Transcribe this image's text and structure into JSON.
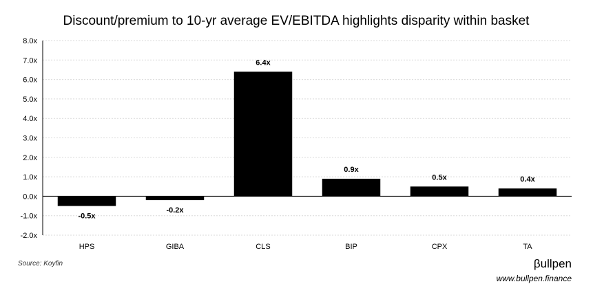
{
  "chart_data": {
    "type": "bar",
    "title": "Discount/premium to 10-yr average EV/EBITDA highlights disparity within basket",
    "xlabel": "",
    "ylabel": "",
    "categories": [
      "HPS",
      "GIBA",
      "CLS",
      "BIP",
      "CPX",
      "TA"
    ],
    "values": [
      -0.5,
      -0.2,
      6.4,
      0.9,
      0.5,
      0.4
    ],
    "data_labels": [
      "-0.5x",
      "-0.2x",
      "6.4x",
      "0.9x",
      "0.5x",
      "0.4x"
    ],
    "ylim": [
      -2.0,
      8.0
    ],
    "yticks": [
      8.0,
      7.0,
      6.0,
      5.0,
      4.0,
      3.0,
      2.0,
      1.0,
      0.0,
      -1.0,
      -2.0
    ],
    "ytick_labels": [
      "8.0x",
      "7.0x",
      "6.0x",
      "5.0x",
      "4.0x",
      "3.0x",
      "2.0x",
      "1.0x",
      "0.0x",
      "-1.0x",
      "-2.0x"
    ],
    "grid": true,
    "legend": "none",
    "bar_color": "#000000",
    "grid_color": "#d9d9d9"
  },
  "footer": {
    "source": "Source: Koyfin",
    "brand": "βullpen",
    "url": "www.bullpen.finance"
  }
}
